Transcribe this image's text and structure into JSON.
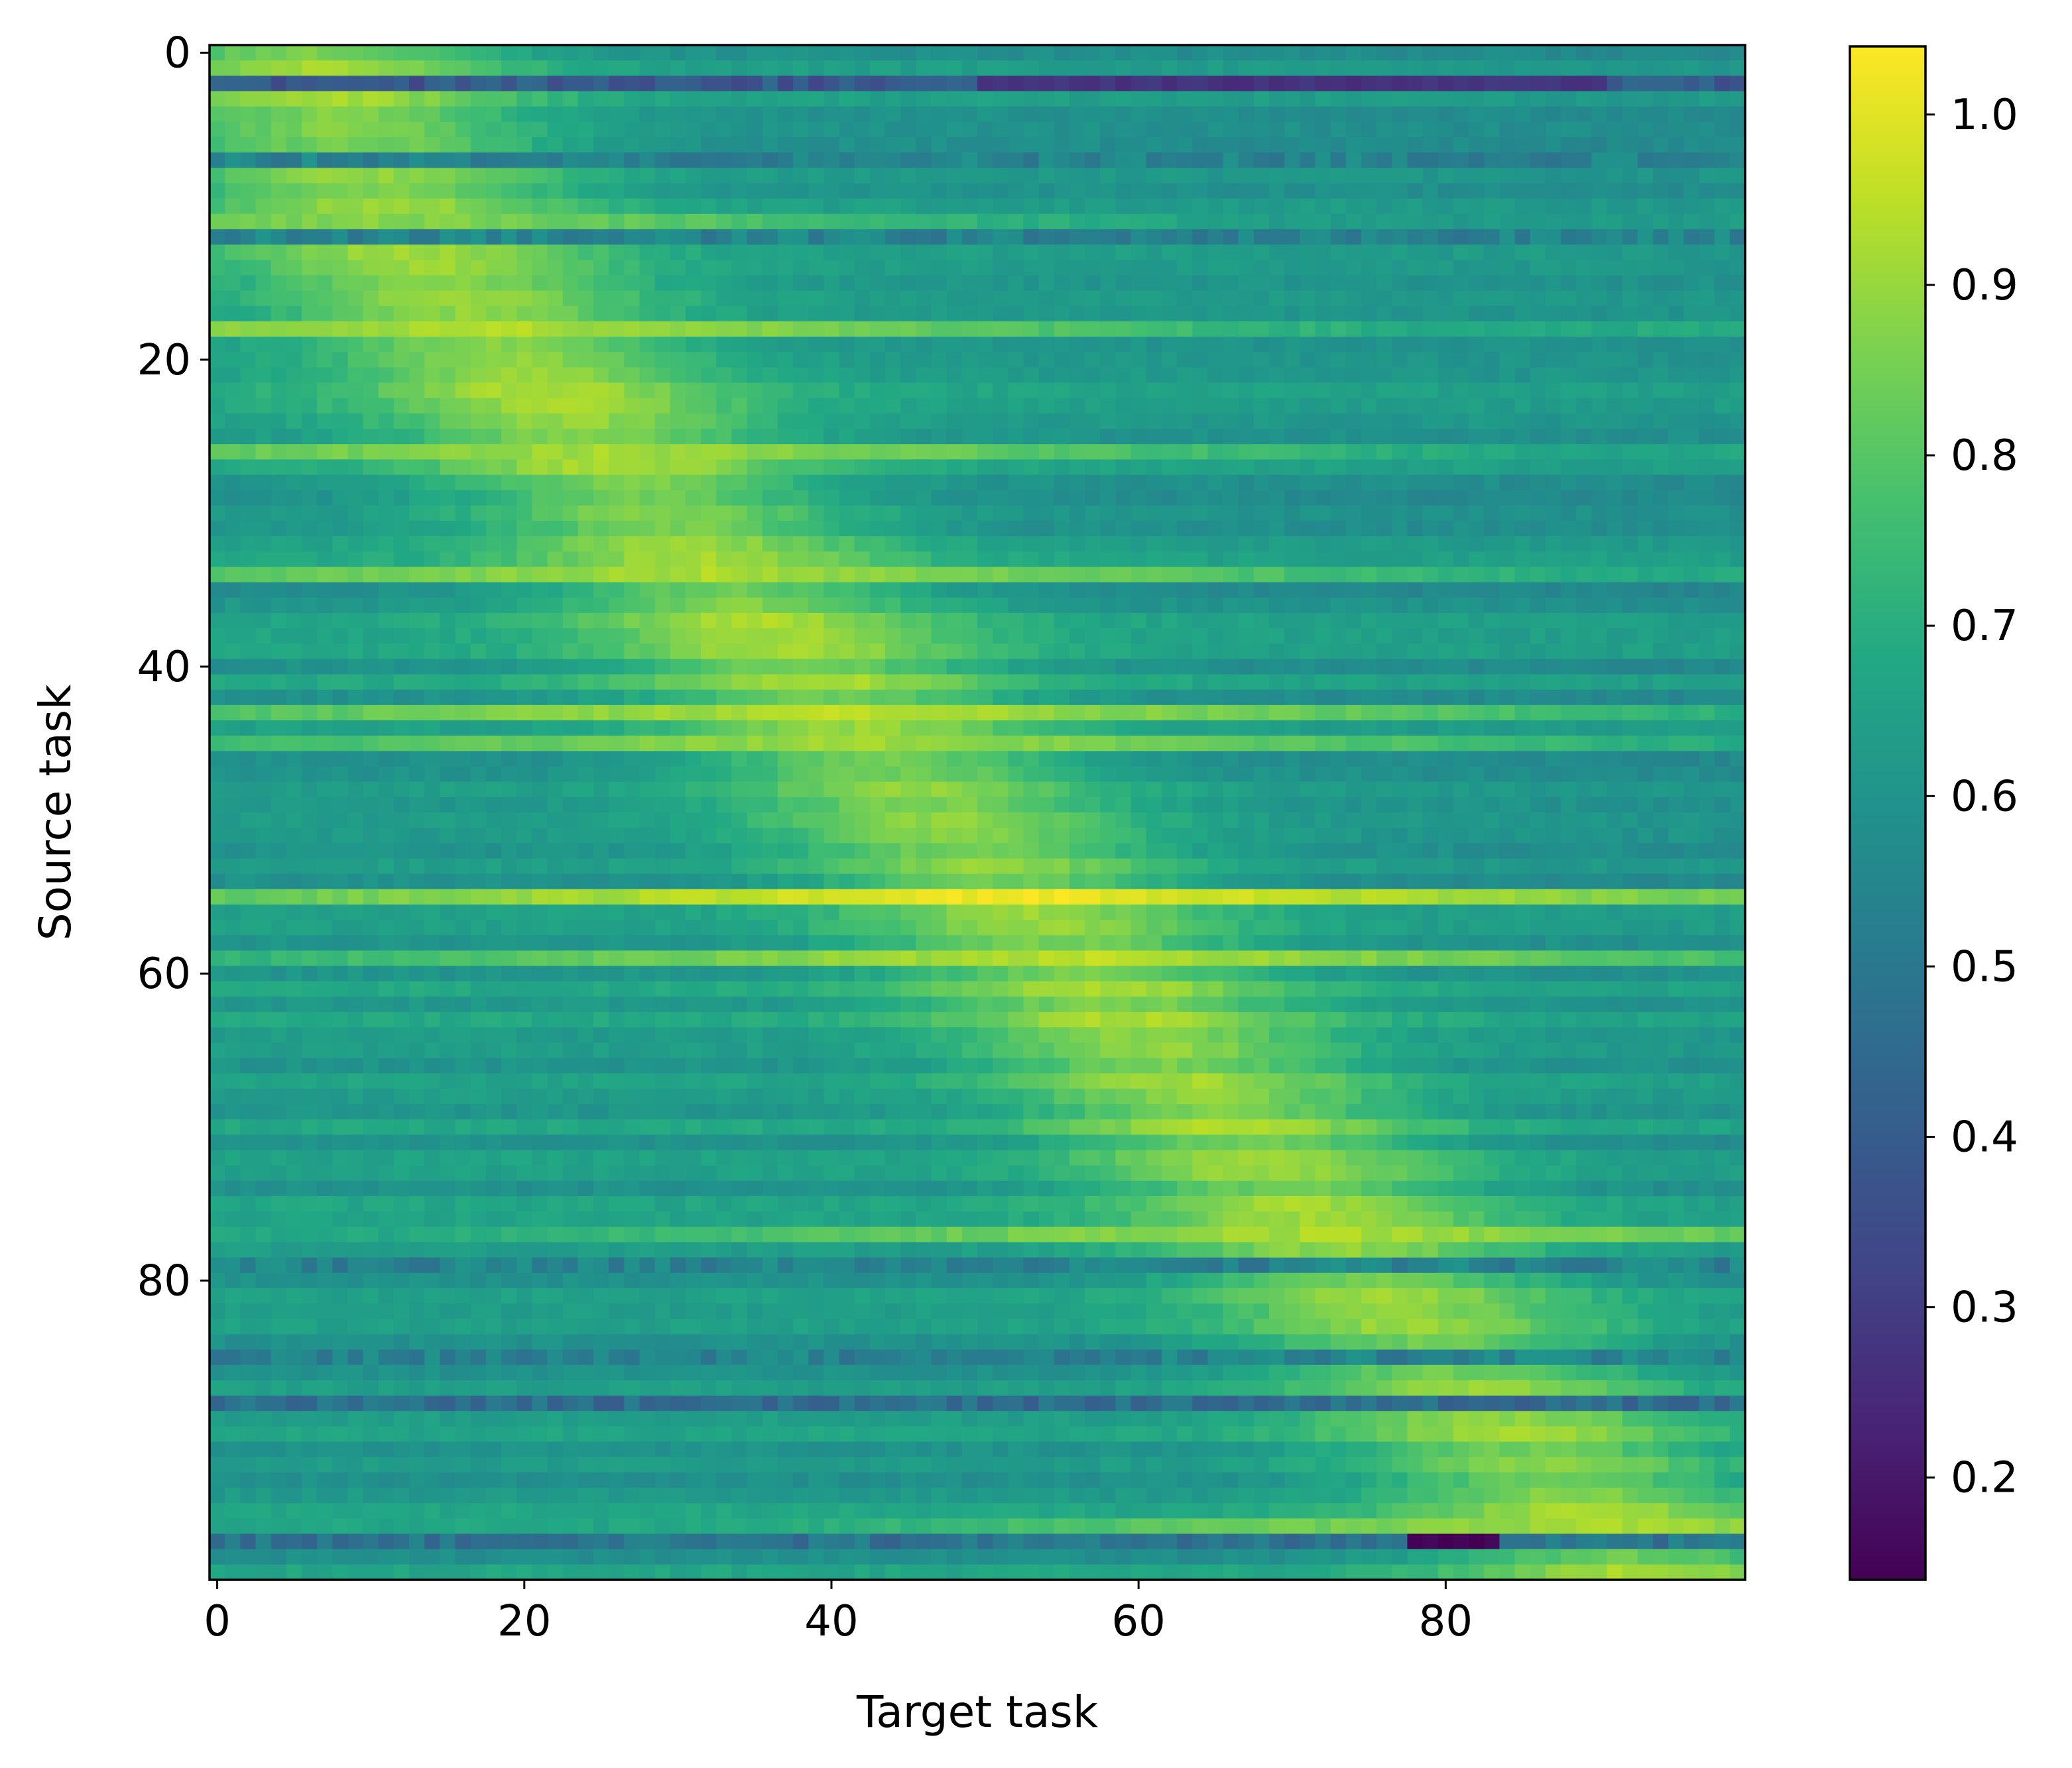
{
  "chart_data": {
    "type": "heatmap",
    "xlabel": "Target task",
    "ylabel": "Source task",
    "x_range": [
      0,
      99
    ],
    "y_range": [
      0,
      99
    ],
    "x_ticks": [
      0,
      20,
      40,
      60,
      80
    ],
    "y_ticks": [
      0,
      20,
      40,
      60,
      80
    ],
    "colormap": "viridis",
    "colorbar": {
      "range": [
        0.14,
        1.04
      ],
      "ticks": [
        0.2,
        0.3,
        0.4,
        0.5,
        0.6,
        0.7,
        0.8,
        0.9,
        1.0
      ],
      "tick_labels": [
        "0.2",
        "0.3",
        "0.4",
        "0.5",
        "0.6",
        "0.7",
        "0.8",
        "0.9",
        "1.0"
      ],
      "placement": "right"
    },
    "grid": false,
    "description_of_values": {
      "baseline": 0.63,
      "diagonal_peak_trend": "high values (0.9-1.0) along a diagonal from about (source 12, target 12) to (source 96, target 90)",
      "bright_rows": [
        {
          "row": 11,
          "value": 0.88
        },
        {
          "row": 18,
          "value": 0.94
        },
        {
          "row": 26,
          "value": 0.92
        },
        {
          "row": 34,
          "value": 0.93
        },
        {
          "row": 43,
          "value": 0.95
        },
        {
          "row": 45,
          "value": 0.92
        },
        {
          "row": 55,
          "value": 1.03
        },
        {
          "row": 59,
          "value": 0.95
        },
        {
          "row": 77,
          "value": 0.93
        },
        {
          "row": 96,
          "value": 0.92
        }
      ],
      "dark_rows": [
        {
          "row": 2,
          "value": 0.35,
          "darkest_cols": [
            50,
            90
          ]
        },
        {
          "row": 7,
          "value": 0.5
        },
        {
          "row": 12,
          "value": 0.5
        },
        {
          "row": 79,
          "value": 0.5
        },
        {
          "row": 85,
          "value": 0.5
        },
        {
          "row": 88,
          "value": 0.42
        },
        {
          "row": 97,
          "value": 0.45,
          "darkest_cols": [
            78,
            83
          ],
          "min_value": 0.15
        }
      ]
    }
  }
}
